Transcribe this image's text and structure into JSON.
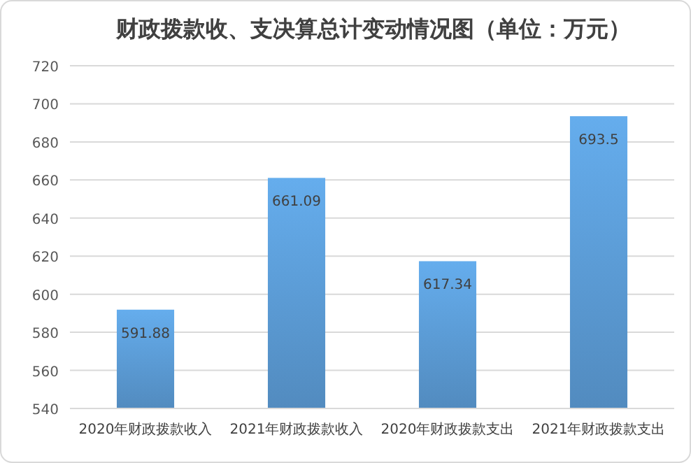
{
  "chart_data": {
    "type": "bar",
    "title": "财政拨款收、支决算总计变动情况图（单位：万元）",
    "categories": [
      "2020年财政拨款收入",
      "2021年财政拨款收入",
      "2020年财政拨款支出",
      "2021年财政拨款支出"
    ],
    "values": [
      591.88,
      661.09,
      617.34,
      693.5
    ],
    "color": "#5b9bd5",
    "ylim": [
      540,
      720
    ],
    "yticks": [
      540,
      560,
      580,
      600,
      620,
      640,
      660,
      680,
      700,
      720
    ],
    "grid": "y",
    "data_labels": true
  }
}
